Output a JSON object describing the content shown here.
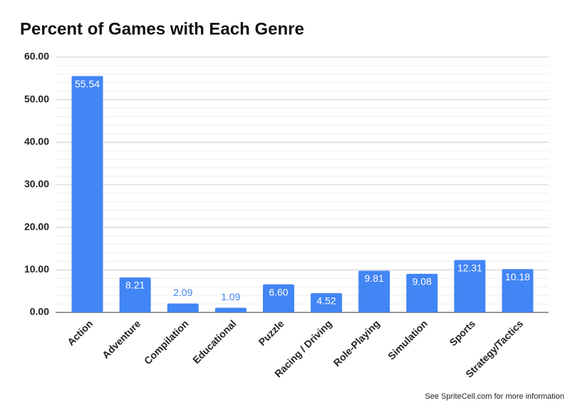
{
  "chart_data": {
    "type": "bar",
    "title": "Percent of Games with Each Genre",
    "footnote": "See SpriteCell.com for more information",
    "categories": [
      "Action",
      "Adventure",
      "Compilation",
      "Educational",
      "Puzzle",
      "Racing / Driving",
      "Role-Playing",
      "Simulation",
      "Sports",
      "Strategy/Tactics"
    ],
    "values": [
      55.54,
      8.21,
      2.09,
      1.09,
      6.6,
      4.52,
      9.81,
      9.08,
      12.31,
      10.18
    ],
    "value_labels": [
      "55.54",
      "8.21",
      "2.09",
      "1.09",
      "6.60",
      "4.52",
      "9.81",
      "9.08",
      "12.31",
      "10.18"
    ],
    "color": "#4285f4",
    "ylim": [
      0,
      60
    ],
    "yticks": [
      {
        "value": 0,
        "label": "0.00"
      },
      {
        "value": 10,
        "label": "10.00"
      },
      {
        "value": 20,
        "label": "20.00"
      },
      {
        "value": 30,
        "label": "30.00"
      },
      {
        "value": 40,
        "label": "40.00"
      },
      {
        "value": 50,
        "label": "50.00"
      },
      {
        "value": 60,
        "label": "60.00"
      }
    ],
    "minor_yticks": [
      2,
      4,
      6,
      8,
      12,
      14,
      16,
      18,
      22,
      24,
      26,
      28,
      32,
      34,
      36,
      38,
      42,
      44,
      46,
      48,
      52,
      54,
      56,
      58
    ],
    "grid": true
  }
}
